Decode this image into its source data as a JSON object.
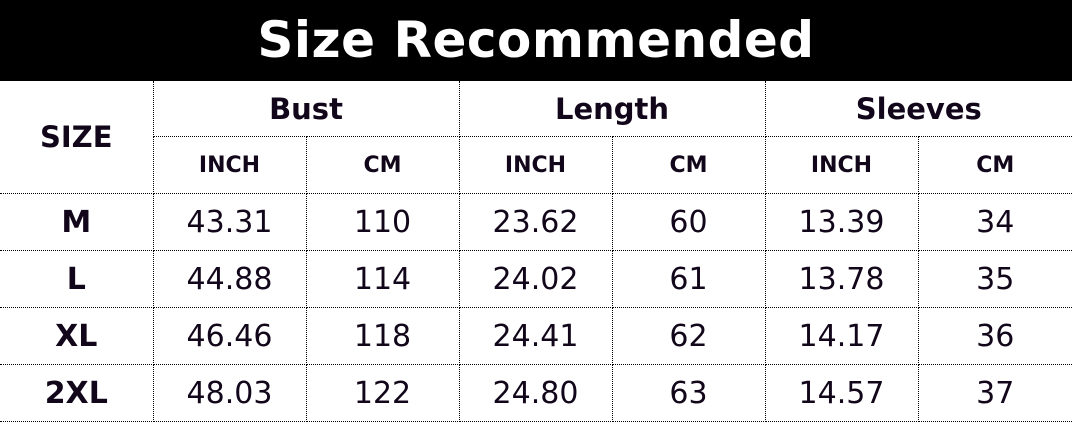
{
  "title": "Size Recommended",
  "headers": {
    "size": "SIZE",
    "groups": [
      "Bust",
      "Length",
      "Sleeves"
    ],
    "units": [
      "INCH",
      "CM",
      "INCH",
      "CM",
      "INCH",
      "CM"
    ]
  },
  "rows": [
    {
      "size": "M",
      "values": [
        "43.31",
        "110",
        "23.62",
        "60",
        "13.39",
        "34"
      ]
    },
    {
      "size": "L",
      "values": [
        "44.88",
        "114",
        "24.02",
        "61",
        "13.78",
        "35"
      ]
    },
    {
      "size": "XL",
      "values": [
        "46.46",
        "118",
        "24.41",
        "62",
        "14.17",
        "36"
      ]
    },
    {
      "size": "2XL",
      "values": [
        "48.03",
        "122",
        "24.80",
        "63",
        "14.57",
        "37"
      ]
    }
  ]
}
